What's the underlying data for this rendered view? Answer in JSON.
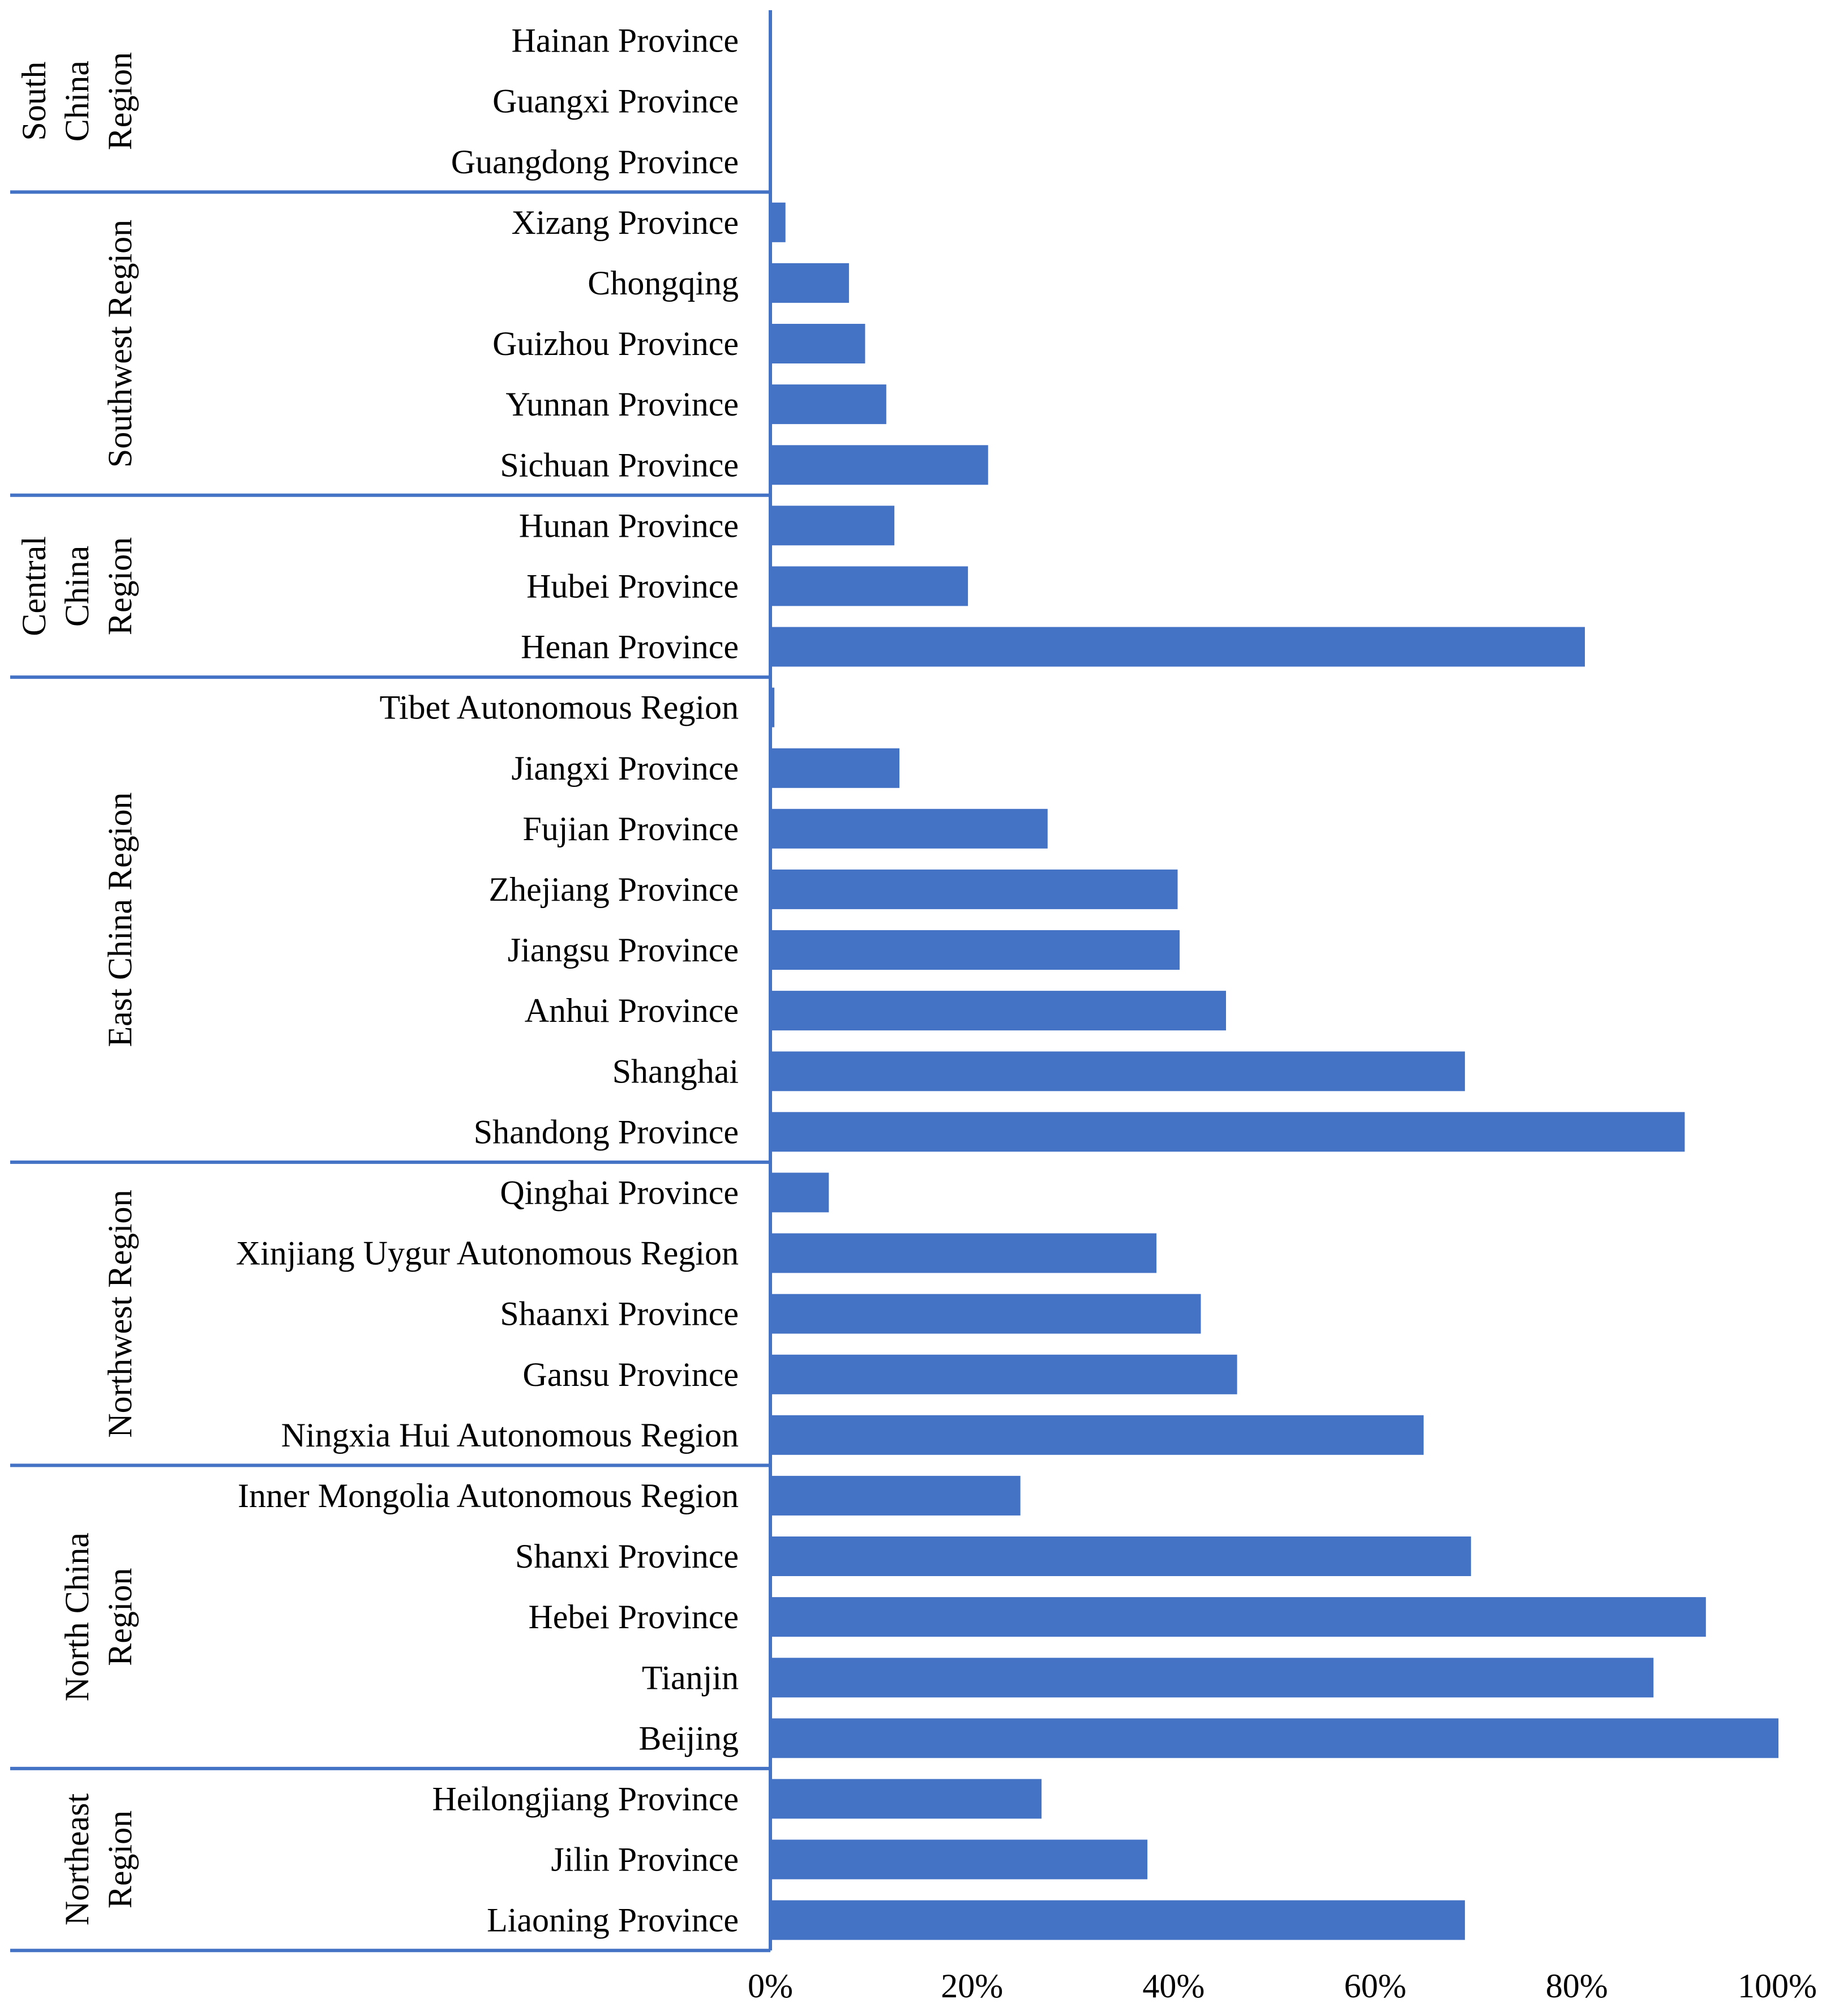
{
  "chart_data": {
    "type": "bar",
    "orientation": "horizontal",
    "title": "",
    "xlabel": "",
    "ylabel": "",
    "xlim": [
      0,
      100
    ],
    "x_ticks": [
      "0%",
      "20%",
      "40%",
      "60%",
      "80%",
      "100%"
    ],
    "grid": false,
    "bar_color": "#4472C4",
    "axis_color": "#4472C4",
    "groups": [
      {
        "region": "South China Region",
        "lines": [
          "South",
          "China",
          "Region"
        ],
        "items": [
          {
            "label": "Hainan Province",
            "value": 0
          },
          {
            "label": "Guangxi Province",
            "value": 0
          },
          {
            "label": "Guangdong Province",
            "value": 0
          }
        ]
      },
      {
        "region": "Southwest Region",
        "lines": [
          "Southwest Region"
        ],
        "items": [
          {
            "label": "Xizang Province",
            "value": 1.5
          },
          {
            "label": "Chongqing",
            "value": 7.8
          },
          {
            "label": "Guizhou Province",
            "value": 9.4
          },
          {
            "label": "Yunnan Province",
            "value": 11.5
          },
          {
            "label": "Sichuan Province",
            "value": 21.6
          }
        ]
      },
      {
        "region": "Central China Region",
        "lines": [
          "Central",
          "China",
          "Region"
        ],
        "items": [
          {
            "label": "Hunan Province",
            "value": 12.3
          },
          {
            "label": "Hubei Province",
            "value": 19.6
          },
          {
            "label": "Henan Province",
            "value": 80.8
          }
        ]
      },
      {
        "region": "East China Region",
        "lines": [
          "East China Region"
        ],
        "items": [
          {
            "label": "Tibet Autonomous Region",
            "value": 0.4
          },
          {
            "label": "Jiangxi Province",
            "value": 12.8
          },
          {
            "label": "Fujian Province",
            "value": 27.5
          },
          {
            "label": "Zhejiang Province",
            "value": 40.4
          },
          {
            "label": "Jiangsu Province",
            "value": 40.6
          },
          {
            "label": "Anhui Province",
            "value": 45.2
          },
          {
            "label": "Shanghai",
            "value": 68.9
          },
          {
            "label": "Shandong Province",
            "value": 90.7
          }
        ]
      },
      {
        "region": "Northwest Region",
        "lines": [
          "Northwest Region"
        ],
        "items": [
          {
            "label": "Qinghai Province",
            "value": 5.8
          },
          {
            "label": "Xinjiang Uygur Autonomous Region",
            "value": 38.3
          },
          {
            "label": "Shaanxi Province",
            "value": 42.7
          },
          {
            "label": "Gansu Province",
            "value": 46.3
          },
          {
            "label": "Ningxia Hui Autonomous Region",
            "value": 64.8
          }
        ]
      },
      {
        "region": "North China Region",
        "lines": [
          "North China",
          "Region"
        ],
        "items": [
          {
            "label": "Inner Mongolia Autonomous Region",
            "value": 24.8
          },
          {
            "label": "Shanxi Province",
            "value": 69.5
          },
          {
            "label": "Hebei Province",
            "value": 92.8
          },
          {
            "label": "Tianjin",
            "value": 87.6
          },
          {
            "label": "Beijing",
            "value": 100
          }
        ]
      },
      {
        "region": "Northeast Region",
        "lines": [
          "Northeast",
          "Region"
        ],
        "items": [
          {
            "label": "Heilongjiang Province",
            "value": 26.9
          },
          {
            "label": "Jilin Province",
            "value": 37.4
          },
          {
            "label": "Liaoning Province",
            "value": 68.9
          }
        ]
      }
    ]
  }
}
